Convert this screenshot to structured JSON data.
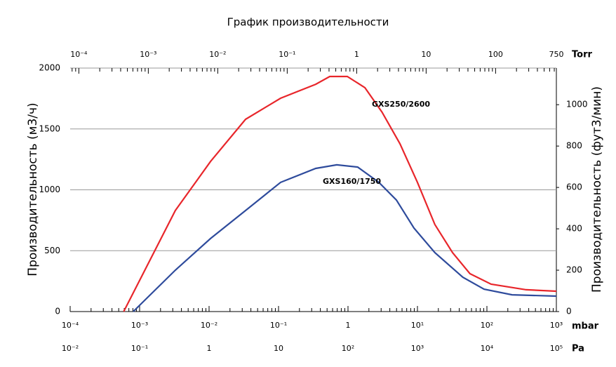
{
  "chart_data": {
    "type": "line",
    "title": "График производительности",
    "y_label": "Производительность (м3/ч)",
    "y2_label": "Производительность (фут3/мин)",
    "x_label": "mbar",
    "x2_label": "Torr",
    "x3_label": "Pa",
    "x_scale": "log",
    "grid": true,
    "minor_ticks": true,
    "xlim": [
      0.0001,
      1000
    ],
    "xticks": [
      {
        "value": 0.0001,
        "label": "10⁻⁴"
      },
      {
        "value": 0.001,
        "label": "10⁻³"
      },
      {
        "value": 0.01,
        "label": "10⁻²"
      },
      {
        "value": 0.1,
        "label": "10⁻¹"
      },
      1,
      {
        "value": 10,
        "label": "10¹"
      },
      {
        "value": 100,
        "label": "10²"
      },
      {
        "value": 1000,
        "label": "10³"
      }
    ],
    "x2lim": [
      7.5e-05,
      750
    ],
    "x2ticks": [
      {
        "value": 0.0001,
        "label": "10⁻⁴"
      },
      {
        "value": 0.001,
        "label": "10⁻³"
      },
      {
        "value": 0.01,
        "label": "10⁻²"
      },
      {
        "value": 0.1,
        "label": "10⁻¹"
      },
      1,
      10,
      100,
      750
    ],
    "x3lim": [
      0.01,
      100000
    ],
    "x3ticks": [
      {
        "value": 0.01,
        "label": "10⁻²"
      },
      {
        "value": 0.1,
        "label": "10⁻¹"
      },
      1,
      10,
      {
        "value": 100,
        "label": "10²"
      },
      {
        "value": 1000,
        "label": "10³"
      },
      {
        "value": 10000,
        "label": "10⁴"
      },
      {
        "value": 100000,
        "label": "10⁵"
      }
    ],
    "ylim": [
      0,
      2000
    ],
    "yticks": [
      0,
      500,
      1000,
      1500,
      2000
    ],
    "y2lim": [
      0,
      1177
    ],
    "y2ticks": [
      0,
      200,
      400,
      600,
      800,
      1000
    ],
    "series": [
      {
        "name": "GXS250/2600",
        "color": "#e8262b",
        "x": [
          0.00059,
          0.00327,
          0.0105,
          0.0335,
          0.107,
          0.343,
          0.546,
          0.977,
          1.75,
          3.1,
          5.6,
          10,
          17.8,
          32,
          57,
          115,
          368,
          1000
        ],
        "values": [
          0,
          830,
          1233,
          1579,
          1752,
          1867,
          1931,
          1931,
          1839,
          1637,
          1378,
          1061,
          715,
          484,
          311,
          225,
          179,
          167
        ]
      },
      {
        "name": "GXS160/1750",
        "color": "#2e4b9c",
        "x": [
          0.00081,
          0.00327,
          0.0105,
          0.0335,
          0.107,
          0.343,
          0.69,
          1.38,
          2.78,
          4.98,
          8.9,
          17.8,
          45,
          91,
          230,
          1000
        ],
        "values": [
          0,
          340,
          600,
          830,
          1061,
          1176,
          1205,
          1187,
          1061,
          916,
          686,
          484,
          282,
          184,
          138,
          127
        ]
      }
    ]
  }
}
